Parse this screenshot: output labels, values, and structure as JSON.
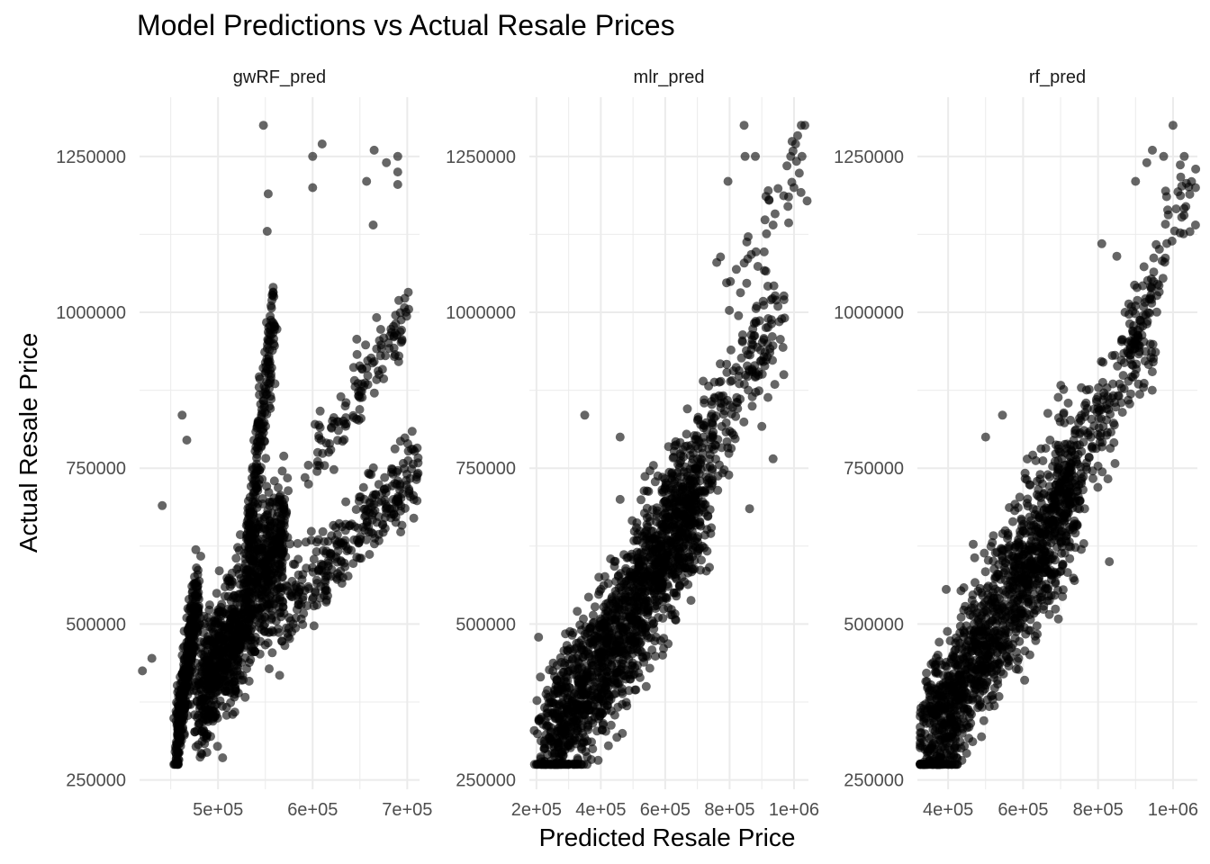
{
  "chart_data": {
    "type": "scatter",
    "title": "Model Predictions vs Actual Resale Prices",
    "xlabel": "Predicted Resale Price",
    "ylabel": "Actual Resale Price",
    "point_color": "#000000",
    "point_opacity": 0.6,
    "grid": true,
    "legend": "none",
    "y_range": [
      235000,
      1345000
    ],
    "y_ticks": [
      250000,
      500000,
      750000,
      1000000,
      1250000
    ],
    "y_tick_labels": [
      "250000",
      "500000",
      "750000",
      "1000000",
      "1250000"
    ],
    "facets": [
      {
        "name": "gwRF_pred",
        "x_range": [
          417000,
          713000
        ],
        "x_ticks": [
          500000,
          600000,
          700000
        ],
        "x_tick_labels": [
          "5e+05",
          "6e+05",
          "7e+05"
        ],
        "model": {
          "clusters": [
            {
              "n": 380,
              "x": [
                455000,
                480000
              ],
              "y": [
                300000,
                560000
              ],
              "slope": 0.5
            },
            {
              "n": 1000,
              "x": [
                480000,
                570000
              ],
              "y": [
                380000,
                650000
              ],
              "slope": 1.5
            },
            {
              "n": 220,
              "x": [
                530000,
                560000
              ],
              "y": [
                600000,
                1000000
              ],
              "slope": 0.5
            },
            {
              "n": 320,
              "x": [
                560000,
                710000
              ],
              "y": [
                500000,
                750000
              ],
              "slope": 0.4
            },
            {
              "n": 120,
              "x": [
                600000,
                700000
              ],
              "y": [
                750000,
                1000000
              ],
              "slope": 0.3
            }
          ],
          "points": [
            [
              548000,
              1300000
            ],
            [
              600000,
              1250000
            ],
            [
              610000,
              1270000
            ],
            [
              665000,
              1260000
            ],
            [
              690000,
              1250000
            ],
            [
              657000,
              1210000
            ],
            [
              690000,
              1205000
            ],
            [
              553000,
              1190000
            ],
            [
              552000,
              1130000
            ],
            [
              664000,
              1140000
            ],
            [
              462000,
              835000
            ],
            [
              467000,
              795000
            ],
            [
              441000,
              690000
            ],
            [
              420000,
              425000
            ],
            [
              430000,
              445000
            ],
            [
              690000,
              1225000
            ],
            [
              678000,
              1240000
            ],
            [
              600000,
              1200000
            ]
          ]
        }
      },
      {
        "name": "mlr_pred",
        "x_range": [
          178000,
          1045000
        ],
        "x_ticks": [
          200000,
          400000,
          600000,
          800000,
          1000000
        ],
        "x_tick_labels": [
          "2e+05",
          "4e+05",
          "6e+05",
          "8e+05",
          "1e+06"
        ],
        "model": {
          "clusters": [
            {
              "n": 1600,
              "x": [
                230000,
                720000
              ],
              "y": [
                290000,
                720000
              ],
              "slope": 1.0
            },
            {
              "n": 260,
              "x": [
                600000,
                950000
              ],
              "y": [
                650000,
                1000000
              ],
              "slope": 1.0
            },
            {
              "n": 40,
              "x": [
                780000,
                1040000
              ],
              "y": [
                1000000,
                1270000
              ],
              "slope": 0.8
            }
          ],
          "points": [
            [
              845000,
              1300000
            ],
            [
              1005000,
              1270000
            ],
            [
              1025000,
              1250000
            ],
            [
              880000,
              1250000
            ],
            [
              848000,
              1250000
            ],
            [
              990000,
              1250000
            ],
            [
              795000,
              1210000
            ],
            [
              1000000,
              1200000
            ],
            [
              935000,
              1140000
            ],
            [
              760000,
              1080000
            ],
            [
              350000,
              835000
            ],
            [
              460000,
              800000
            ],
            [
              935000,
              765000
            ],
            [
              862000,
              685000
            ],
            [
              460000,
              700000
            ]
          ]
        }
      },
      {
        "name": "rf_pred",
        "x_range": [
          318000,
          1065000
        ],
        "x_ticks": [
          400000,
          600000,
          800000,
          1000000
        ],
        "x_tick_labels": [
          "4e+05",
          "6e+05",
          "8e+05",
          "1e+06"
        ],
        "model": {
          "clusters": [
            {
              "n": 1400,
              "x": [
                330000,
                740000
              ],
              "y": [
                280000,
                730000
              ],
              "slope": 1.0
            },
            {
              "n": 230,
              "x": [
                700000,
                950000
              ],
              "y": [
                700000,
                1000000
              ],
              "slope": 1.0
            },
            {
              "n": 60,
              "x": [
                880000,
                1060000
              ],
              "y": [
                940000,
                1260000
              ],
              "slope": 0.9
            }
          ],
          "points": [
            [
              1000000,
              1300000
            ],
            [
              945000,
              1260000
            ],
            [
              975000,
              1250000
            ],
            [
              1030000,
              1250000
            ],
            [
              930000,
              1240000
            ],
            [
              900000,
              1210000
            ],
            [
              1060000,
              1200000
            ],
            [
              1060000,
              1140000
            ],
            [
              810000,
              1110000
            ],
            [
              850000,
              1090000
            ],
            [
              545000,
              835000
            ],
            [
              500000,
              800000
            ],
            [
              830000,
              600000
            ],
            [
              620000,
              540000
            ]
          ]
        }
      }
    ]
  }
}
